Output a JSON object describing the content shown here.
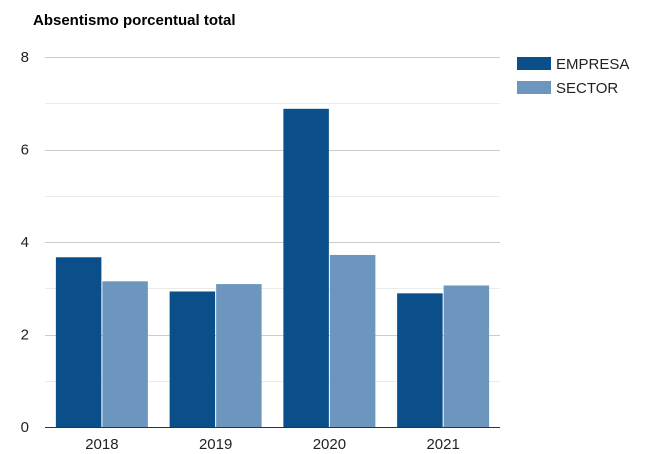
{
  "chart_data": {
    "type": "bar",
    "title": "Absentismo porcentual total",
    "categories": [
      "2018",
      "2019",
      "2020",
      "2021"
    ],
    "series": [
      {
        "name": "EMPRESA",
        "values": [
          3.67,
          2.93,
          6.88,
          2.89
        ],
        "color": "#0b4f8a"
      },
      {
        "name": "SECTOR",
        "values": [
          3.15,
          3.09,
          3.72,
          3.06
        ],
        "color": "#6c96be"
      }
    ],
    "ylim": [
      0,
      8
    ],
    "yticks": [
      0,
      2,
      4,
      6,
      8
    ],
    "grid": true,
    "legend": "top-right",
    "xlabel": "",
    "ylabel": ""
  }
}
